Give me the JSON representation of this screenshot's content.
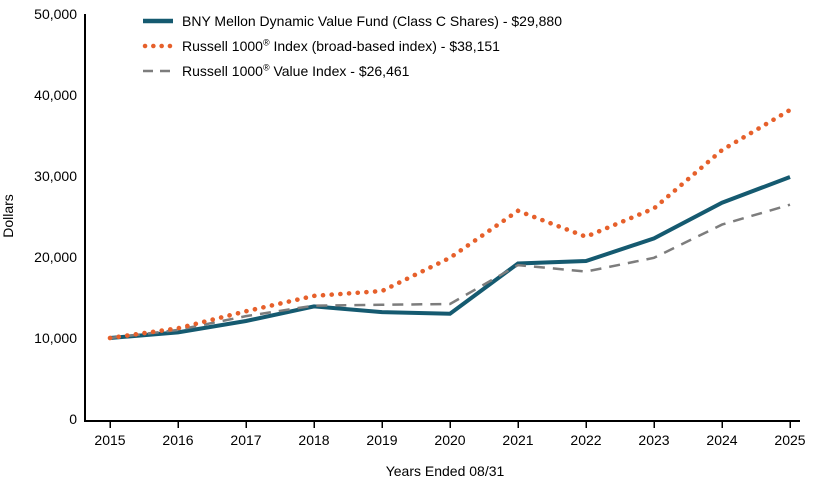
{
  "chart_data": {
    "type": "line",
    "xlabel": "Years Ended 08/31",
    "ylabel": "Dollars",
    "ylim": [
      0,
      50000
    ],
    "grid": false,
    "legend_position": "top-left-inside",
    "x": [
      2015,
      2016,
      2017,
      2018,
      2019,
      2020,
      2021,
      2022,
      2023,
      2024,
      2025
    ],
    "y_ticks": [
      0,
      10000,
      20000,
      30000,
      40000,
      50000
    ],
    "y_tick_labels": [
      "0",
      "10,000",
      "20,000",
      "30,000",
      "40,000",
      "50,000"
    ],
    "series": [
      {
        "name": "BNY Mellon Dynamic Value Fund (Class C Shares)",
        "final_value_label": "$29,880",
        "color": "#155a70",
        "style": "solid",
        "values": [
          10000,
          10700,
          12100,
          13900,
          13200,
          13000,
          19200,
          19500,
          22300,
          26700,
          29880
        ]
      },
      {
        "name": "Russell 1000® Index (broad-based index)",
        "final_value_label": "$38,151",
        "color": "#e6602b",
        "style": "dotted",
        "values": [
          10000,
          11200,
          13300,
          15200,
          15800,
          19900,
          25700,
          22500,
          26000,
          33200,
          38151
        ]
      },
      {
        "name": "Russell 1000® Value Index",
        "final_value_label": "$26,461",
        "color": "#7d7d7d",
        "style": "dashed",
        "values": [
          10000,
          11000,
          12700,
          14000,
          14100,
          14200,
          19000,
          18200,
          19900,
          24000,
          26461
        ]
      }
    ]
  },
  "axes": {
    "y_title": "Dollars",
    "x_title": "Years Ended 08/31"
  },
  "legend": {
    "items": [
      {
        "pre": "BNY Mellon Dynamic Value Fund (Class C Shares) - $29,880",
        "reg": "",
        "post": ""
      },
      {
        "pre": "Russell 1000",
        "reg": "®",
        "post": " Index (broad-based index) - $38,151"
      },
      {
        "pre": "Russell 1000",
        "reg": "®",
        "post": " Value Index - $26,461"
      }
    ]
  }
}
